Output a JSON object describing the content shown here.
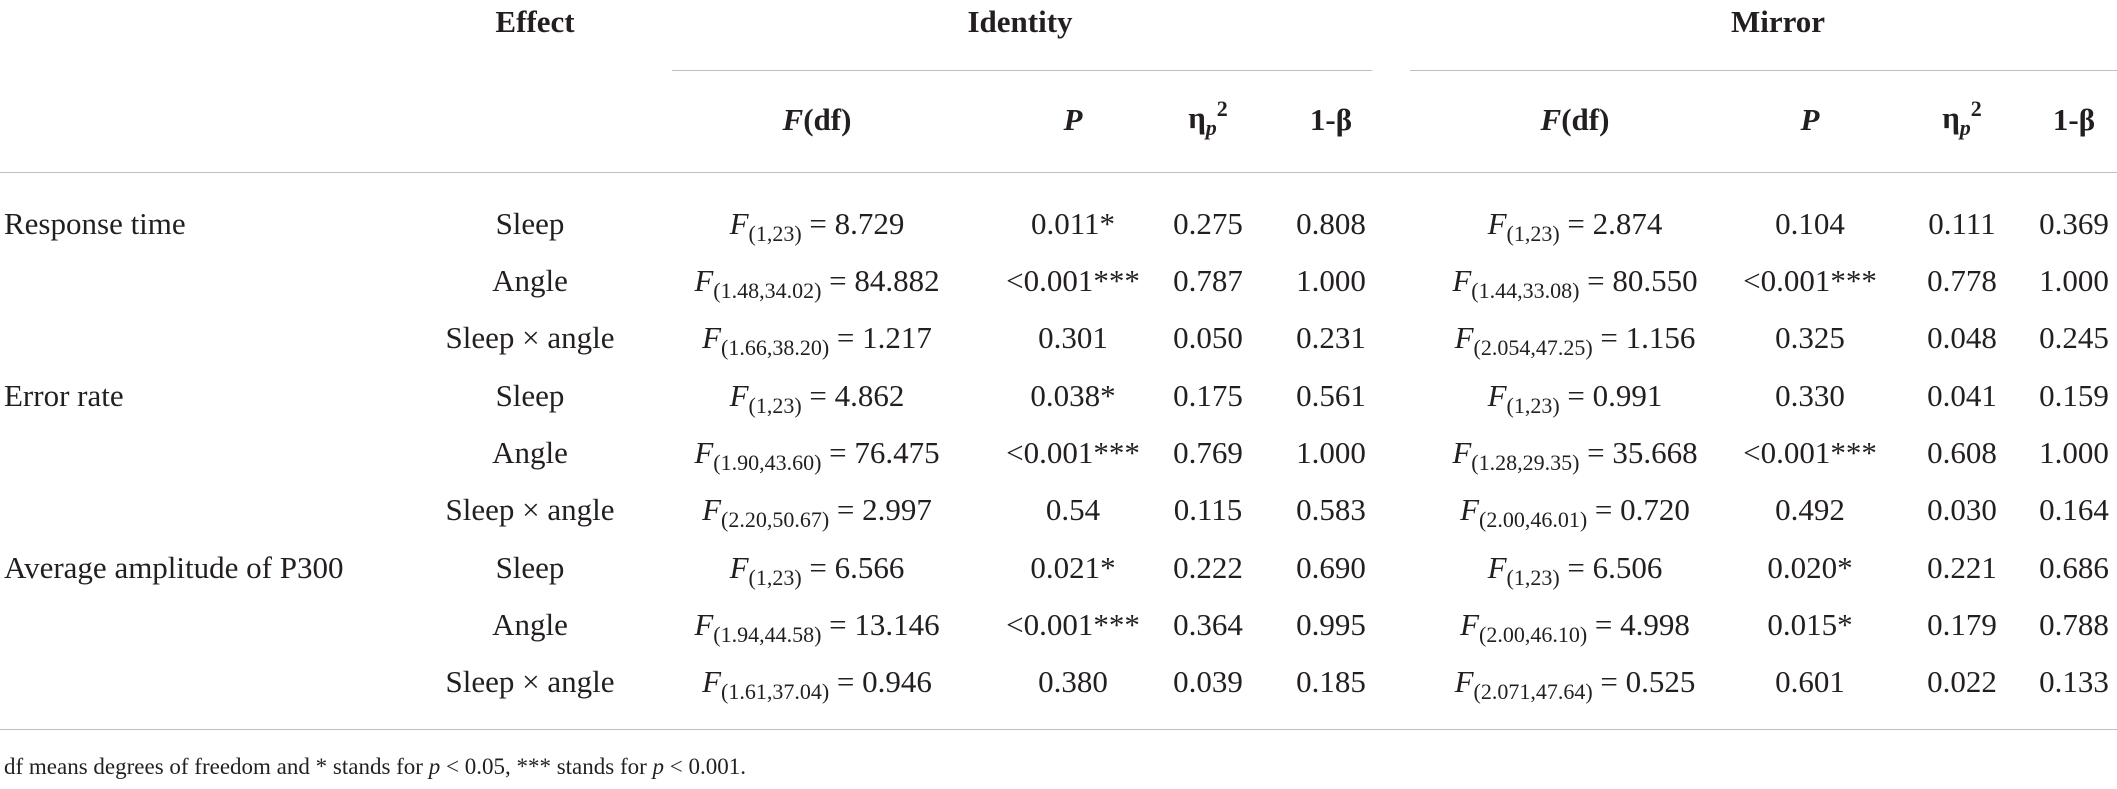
{
  "header": {
    "effect": "Effect",
    "identity": "Identity",
    "mirror": "Mirror",
    "sub_columns": {
      "f_df_letter": "F",
      "f_df_rest": "(df)",
      "p": "P",
      "eta_symbol": "η",
      "eta_sub": "p",
      "eta_sup": "2",
      "power": "1-β"
    }
  },
  "groups": [
    {
      "label": "Response time",
      "rows": [
        {
          "effect": "Sleep",
          "identity": {
            "df": "(1,23)",
            "f": " = 8.729",
            "p": "0.011*",
            "eta": "0.275",
            "power": "0.808"
          },
          "mirror": {
            "df": "(1,23)",
            "f": " = 2.874",
            "p": "0.104",
            "eta": "0.111",
            "power": "0.369"
          }
        },
        {
          "effect": "Angle",
          "identity": {
            "df": "(1.48,34.02)",
            "f": " = 84.882",
            "p": "<0.001***",
            "eta": "0.787",
            "power": "1.000"
          },
          "mirror": {
            "df": "(1.44,33.08)",
            "f": " = 80.550",
            "p": "<0.001***",
            "eta": "0.778",
            "power": "1.000"
          }
        },
        {
          "effect": "Sleep × angle",
          "identity": {
            "df": "(1.66,38.20)",
            "f": " = 1.217",
            "p": "0.301",
            "eta": "0.050",
            "power": "0.231"
          },
          "mirror": {
            "df": "(2.054,47.25)",
            "f": " = 1.156",
            "p": "0.325",
            "eta": "0.048",
            "power": "0.245"
          }
        }
      ]
    },
    {
      "label": "Error rate",
      "rows": [
        {
          "effect": "Sleep",
          "identity": {
            "df": "(1,23)",
            "f": " = 4.862",
            "p": "0.038*",
            "eta": "0.175",
            "power": "0.561"
          },
          "mirror": {
            "df": "(1,23)",
            "f": " = 0.991",
            "p": "0.330",
            "eta": "0.041",
            "power": "0.159"
          }
        },
        {
          "effect": "Angle",
          "identity": {
            "df": "(1.90,43.60)",
            "f": " = 76.475",
            "p": "<0.001***",
            "eta": "0.769",
            "power": "1.000"
          },
          "mirror": {
            "df": "(1.28,29.35)",
            "f": " = 35.668",
            "p": "<0.001***",
            "eta": "0.608",
            "power": "1.000"
          }
        },
        {
          "effect": "Sleep × angle",
          "identity": {
            "df": "(2.20,50.67)",
            "f": " = 2.997",
            "p": "0.54",
            "eta": "0.115",
            "power": "0.583"
          },
          "mirror": {
            "df": "(2.00,46.01)",
            "f": " = 0.720",
            "p": "0.492",
            "eta": "0.030",
            "power": "0.164"
          }
        }
      ]
    },
    {
      "label": "Average amplitude of P300",
      "rows": [
        {
          "effect": "Sleep",
          "identity": {
            "df": "(1,23)",
            "f": " = 6.566",
            "p": "0.021*",
            "eta": "0.222",
            "power": "0.690"
          },
          "mirror": {
            "df": "(1,23)",
            "f": " = 6.506",
            "p": "0.020*",
            "eta": "0.221",
            "power": "0.686"
          }
        },
        {
          "effect": "Angle",
          "identity": {
            "df": "(1.94,44.58)",
            "f": " = 13.146",
            "p": "<0.001***",
            "eta": "0.364",
            "power": "0.995"
          },
          "mirror": {
            "df": "(2.00,46.10)",
            "f": " = 4.998",
            "p": "0.015*",
            "eta": "0.179",
            "power": "0.788"
          }
        },
        {
          "effect": "Sleep × angle",
          "identity": {
            "df": "(1.61,37.04)",
            "f": " = 0.946",
            "p": "0.380",
            "eta": "0.039",
            "power": "0.185"
          },
          "mirror": {
            "df": "(2.071,47.64)",
            "f": " = 0.525",
            "p": "0.601",
            "eta": "0.022",
            "power": "0.133"
          }
        }
      ]
    }
  ],
  "footnote": {
    "part1": "df means degrees of freedom and * stands for ",
    "p_letter_1": "p",
    "part2": " < 0.05, *** stands for ",
    "p_letter_2": "p",
    "part3": " < 0.001."
  }
}
